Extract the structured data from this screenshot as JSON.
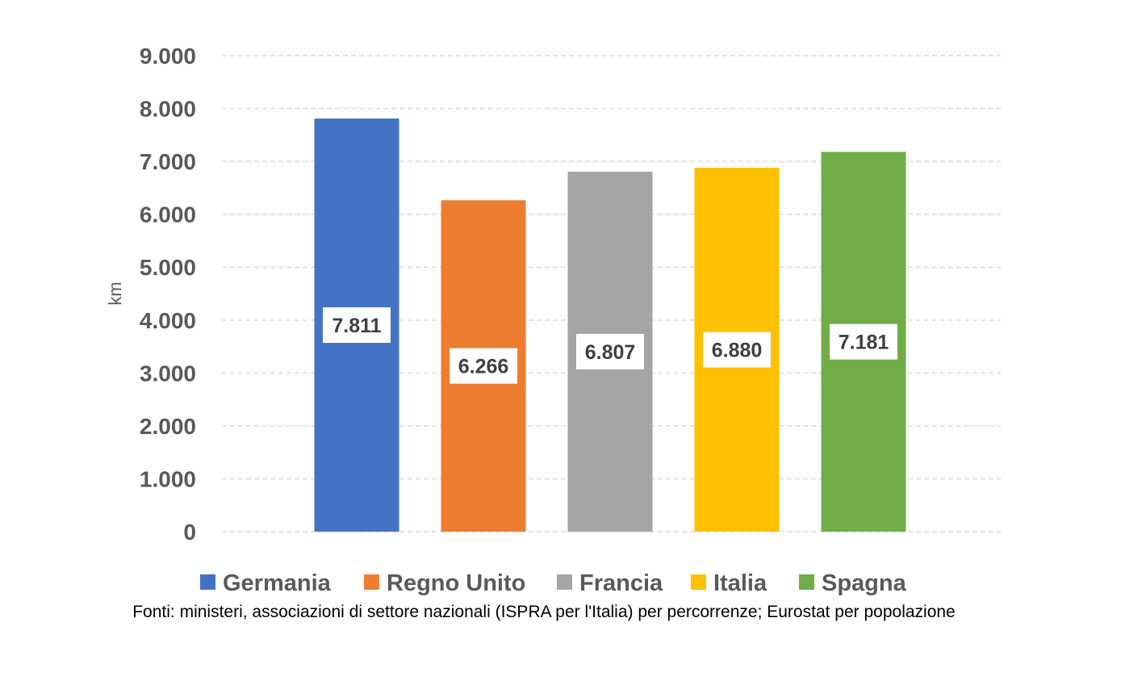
{
  "chart_data": {
    "type": "bar",
    "categories": [
      "Germania",
      "Regno Unito",
      "Francia",
      "Italia",
      "Spagna"
    ],
    "values": [
      7811,
      6266,
      6807,
      6880,
      7181
    ],
    "data_labels": [
      "7.811",
      "6.266",
      "6.807",
      "6.880",
      "7.181"
    ],
    "colors": [
      "#4472C4",
      "#ED7D31",
      "#A5A5A5",
      "#FFC000",
      "#70AD47"
    ],
    "ylabel": "km",
    "ylim": [
      0,
      9000
    ],
    "yticks": [
      0,
      1000,
      2000,
      3000,
      4000,
      5000,
      6000,
      7000,
      8000,
      9000
    ],
    "ytick_labels": [
      "0",
      "1.000",
      "2.000",
      "3.000",
      "4.000",
      "5.000",
      "6.000",
      "7.000",
      "8.000",
      "9.000"
    ],
    "grid": true,
    "legend": {
      "placement": "bottom",
      "entries": [
        "Germania",
        "Regno Unito",
        "Francia",
        "Italia",
        "Spagna"
      ]
    },
    "source": "Fonti: ministeri, associazioni di settore nazionali (ISPRA per l'Italia) per percorrenze; Eurostat per popolazione"
  }
}
